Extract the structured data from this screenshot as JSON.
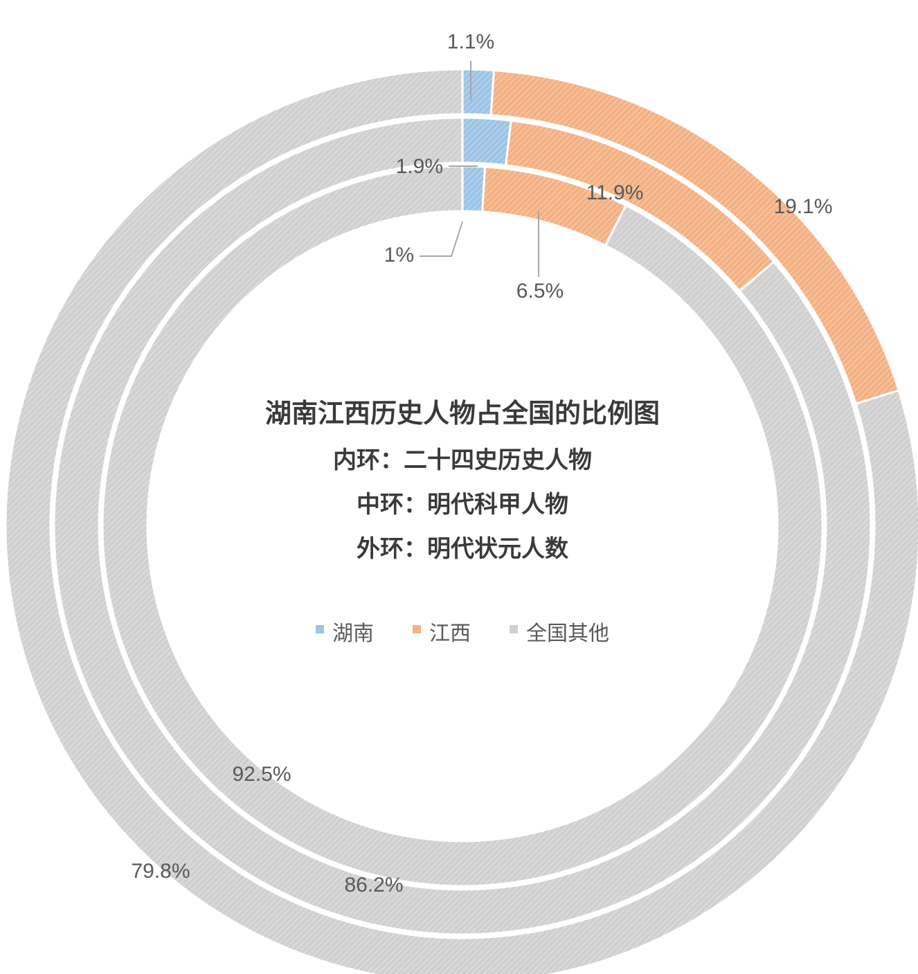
{
  "chart_data": {
    "type": "donut",
    "title": "湖南江西历史人物占全国的比例图",
    "subtitles": [
      "内环：二十四史历史人物",
      "中环：明代科甲人物",
      "外环：明代状元人数"
    ],
    "categories": [
      "湖南",
      "江西",
      "全国其他"
    ],
    "colors": {
      "湖南": "#9dc3e6",
      "江西": "#f4b183",
      "全国其他": "#d0d0d0"
    },
    "rings": [
      {
        "position": "inner",
        "values": [
          1,
          6.5,
          92.5
        ],
        "labels": [
          "1%",
          "6.5%",
          "92.5%"
        ]
      },
      {
        "position": "middle",
        "values": [
          1.9,
          11.9,
          86.2
        ],
        "labels": [
          "1.9%",
          "11.9%",
          "86.2%"
        ]
      },
      {
        "position": "outer",
        "values": [
          1.1,
          19.1,
          79.8
        ],
        "labels": [
          "1.1%",
          "19.1%",
          "79.8%"
        ]
      }
    ],
    "legend": {
      "placement": "center",
      "items": [
        "湖南",
        "江西",
        "全国其他"
      ]
    }
  }
}
